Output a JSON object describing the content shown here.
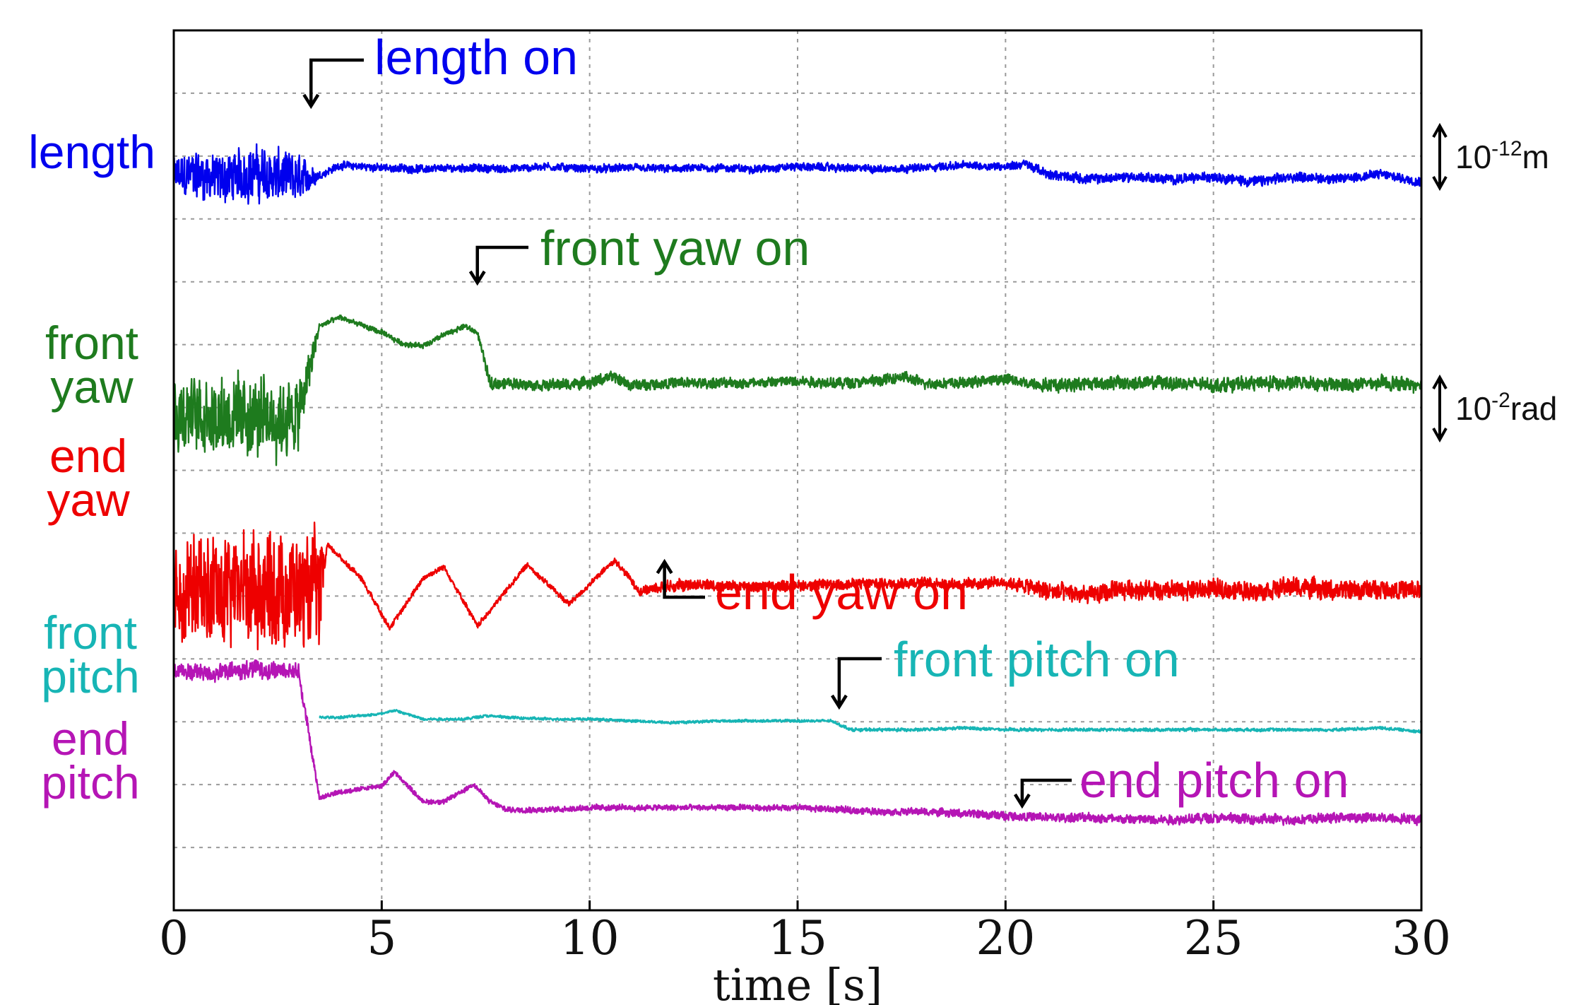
{
  "chart_data": {
    "type": "line",
    "title": "",
    "xlabel": "time  [s]",
    "ylabel": "",
    "xlim": [
      0,
      30
    ],
    "x_ticks": [
      "0",
      "5",
      "10",
      "15",
      "20",
      "25",
      "30"
    ],
    "grid": true,
    "legend": "none",
    "series": [
      {
        "name": "length",
        "color": "#0000ee",
        "label_lines": [
          "length"
        ],
        "x": [
          0,
          0.5,
          1,
          1.5,
          2,
          2.5,
          3,
          3.5,
          4,
          5,
          6,
          7,
          8,
          9,
          10,
          11,
          12,
          13,
          14,
          15,
          16,
          17,
          18,
          19,
          20,
          20.5,
          21,
          22,
          23,
          24,
          25,
          26,
          27,
          28,
          29,
          30
        ],
        "y": [
          0,
          0.1,
          -0.1,
          0.05,
          0.15,
          0,
          -0.1,
          0.05,
          0.45,
          0.35,
          0.3,
          0.35,
          0.3,
          0.4,
          0.3,
          0.35,
          0.3,
          0.35,
          0.3,
          0.4,
          0.35,
          0.3,
          0.35,
          0.45,
          0.4,
          0.5,
          0.1,
          -0.1,
          0,
          -0.1,
          0,
          -0.2,
          0,
          -0.1,
          0.1,
          -0.2
        ],
        "noise": [
          1.2,
          1.5,
          1.5,
          1.6,
          1.6,
          1.7,
          1.5,
          0.25,
          0.25,
          0.25,
          0.25,
          0.25,
          0.25,
          0.25,
          0.25,
          0.25,
          0.25,
          0.25,
          0.25,
          0.25,
          0.25,
          0.25,
          0.25,
          0.25,
          0.25,
          0.3,
          0.3,
          0.3,
          0.3,
          0.3,
          0.3,
          0.35,
          0.3,
          0.3,
          0.3,
          0.3
        ]
      },
      {
        "name": "front yaw",
        "color": "#1e7b1e",
        "label_lines": [
          "front",
          "yaw"
        ],
        "x": [
          0,
          1,
          2,
          3,
          3.5,
          4,
          5,
          5.5,
          6,
          6.5,
          7,
          7.3,
          7.6,
          8,
          9,
          10,
          10.5,
          11,
          12,
          13,
          14,
          15,
          16,
          17,
          17.5,
          18,
          19,
          20,
          20.5,
          21,
          22,
          23,
          24,
          25,
          26,
          27,
          28,
          29,
          30
        ],
        "y": [
          -1.7,
          -1.7,
          -1.8,
          -1.8,
          0.3,
          0.5,
          0.15,
          -0.1,
          -0.15,
          0.1,
          0.3,
          0.15,
          -1.0,
          -1.0,
          -1.05,
          -1.0,
          -0.85,
          -1.05,
          -1.0,
          -1.0,
          -1.0,
          -0.95,
          -1.0,
          -0.95,
          -0.85,
          -1.0,
          -1.0,
          -0.9,
          -1.0,
          -1.05,
          -1.0,
          -1.0,
          -1.0,
          -1.05,
          -1.0,
          -1.0,
          -1.05,
          -1.0,
          -1.05
        ],
        "noise": [
          1.4,
          1.4,
          1.4,
          1.4,
          0.1,
          0.1,
          0.1,
          0.1,
          0.1,
          0.1,
          0.1,
          0.1,
          0.25,
          0.2,
          0.2,
          0.2,
          0.2,
          0.2,
          0.2,
          0.2,
          0.2,
          0.2,
          0.2,
          0.2,
          0.2,
          0.2,
          0.2,
          0.2,
          0.2,
          0.25,
          0.25,
          0.25,
          0.25,
          0.25,
          0.25,
          0.25,
          0.25,
          0.25,
          0.25
        ]
      },
      {
        "name": "end yaw",
        "color": "#ee0000",
        "label_lines": [
          "end",
          "yaw"
        ],
        "x": [
          0,
          1,
          2,
          3,
          3.5,
          3.7,
          4.5,
          5.2,
          6,
          6.5,
          7.3,
          8.5,
          9.5,
          10.6,
          11.2,
          11.8,
          12.5,
          14,
          16,
          18,
          19,
          20,
          20.5,
          21,
          22,
          23,
          24,
          25,
          26,
          27,
          28,
          29,
          30
        ],
        "y": [
          -0.1,
          -0.1,
          0,
          -0.1,
          -0.1,
          0.95,
          0.2,
          -0.95,
          0.2,
          0.45,
          -0.9,
          0.5,
          -0.4,
          0.6,
          -0.1,
          0,
          0.05,
          0.0,
          0.05,
          0.1,
          0.05,
          0.1,
          0.0,
          -0.1,
          -0.2,
          -0.05,
          -0.1,
          -0.05,
          -0.1,
          0,
          -0.1,
          -0.05,
          -0.1
        ],
        "noise": [
          1.8,
          2.0,
          2.0,
          2.0,
          1.8,
          0.1,
          0.1,
          0.1,
          0.1,
          0.1,
          0.1,
          0.1,
          0.1,
          0.1,
          0.15,
          0.25,
          0.2,
          0.2,
          0.2,
          0.2,
          0.2,
          0.2,
          0.3,
          0.35,
          0.35,
          0.35,
          0.35,
          0.35,
          0.35,
          0.35,
          0.35,
          0.35,
          0.35
        ]
      },
      {
        "name": "front pitch",
        "color": "#17b5b5",
        "label_lines": [
          "front",
          "pitch"
        ],
        "x": [
          3.5,
          4,
          5,
          5.3,
          6,
          7,
          7.5,
          8,
          9,
          10,
          11,
          12,
          13,
          14,
          15,
          15.8,
          16.3,
          17,
          18,
          19,
          20,
          21,
          22,
          23,
          24,
          25,
          26,
          27,
          28,
          29,
          30
        ],
        "y": [
          0.1,
          0.1,
          0.2,
          0.3,
          0.05,
          0.05,
          0.15,
          0.1,
          0.05,
          0.05,
          0.0,
          -0.05,
          0.0,
          0.0,
          0.0,
          0.0,
          -0.25,
          -0.25,
          -0.25,
          -0.2,
          -0.25,
          -0.25,
          -0.25,
          -0.25,
          -0.25,
          -0.25,
          -0.25,
          -0.25,
          -0.25,
          -0.2,
          -0.3
        ],
        "noise": [
          0.06,
          0.06,
          0.06,
          0.06,
          0.06,
          0.06,
          0.06,
          0.06,
          0.06,
          0.06,
          0.06,
          0.06,
          0.06,
          0.06,
          0.06,
          0.06,
          0.07,
          0.07,
          0.07,
          0.07,
          0.07,
          0.07,
          0.07,
          0.07,
          0.07,
          0.07,
          0.07,
          0.07,
          0.07,
          0.07,
          0.07
        ]
      },
      {
        "name": "end pitch",
        "color": "#b515b5",
        "label_lines": [
          "end",
          "pitch"
        ],
        "x": [
          0,
          1,
          2,
          3,
          3.5,
          4,
          5,
          5.3,
          6,
          6.5,
          7,
          7.2,
          7.6,
          8,
          9,
          10,
          11,
          12,
          13,
          14,
          15,
          16,
          17,
          18,
          19,
          20,
          21,
          22,
          23,
          24,
          25,
          26,
          27,
          28,
          29,
          30
        ],
        "y": [
          3.4,
          3.35,
          3.45,
          3.4,
          0.2,
          0.35,
          0.5,
          0.85,
          0.1,
          0.1,
          0.4,
          0.55,
          0.1,
          -0.1,
          -0.1,
          -0.05,
          -0.05,
          -0.05,
          -0.05,
          -0.05,
          -0.05,
          -0.1,
          -0.15,
          -0.15,
          -0.2,
          -0.25,
          -0.3,
          -0.3,
          -0.35,
          -0.35,
          -0.3,
          -0.35,
          -0.35,
          -0.3,
          -0.3,
          -0.35
        ],
        "noise": [
          0.3,
          0.35,
          0.35,
          0.35,
          0.1,
          0.1,
          0.1,
          0.1,
          0.1,
          0.1,
          0.1,
          0.1,
          0.1,
          0.12,
          0.12,
          0.12,
          0.12,
          0.12,
          0.12,
          0.12,
          0.12,
          0.14,
          0.14,
          0.14,
          0.16,
          0.18,
          0.18,
          0.2,
          0.2,
          0.2,
          0.2,
          0.2,
          0.2,
          0.2,
          0.2,
          0.2
        ]
      }
    ],
    "annotations": [
      {
        "text": "length on",
        "color": "#0000ee",
        "x": 3.3
      },
      {
        "text": "front yaw on",
        "color": "#1e7b1e",
        "x": 7.3
      },
      {
        "text": "end yaw on",
        "color": "#ee0000",
        "x": 11.8
      },
      {
        "text": "front pitch on",
        "color": "#17b5b5",
        "x": 16
      },
      {
        "text": "end pitch on",
        "color": "#b515b5",
        "x": 20.4
      }
    ],
    "scale_bars": [
      {
        "text": "10",
        "sup": "-12",
        "unit": "m"
      },
      {
        "text": "10",
        "sup": "-2",
        "unit": "rad"
      }
    ]
  }
}
